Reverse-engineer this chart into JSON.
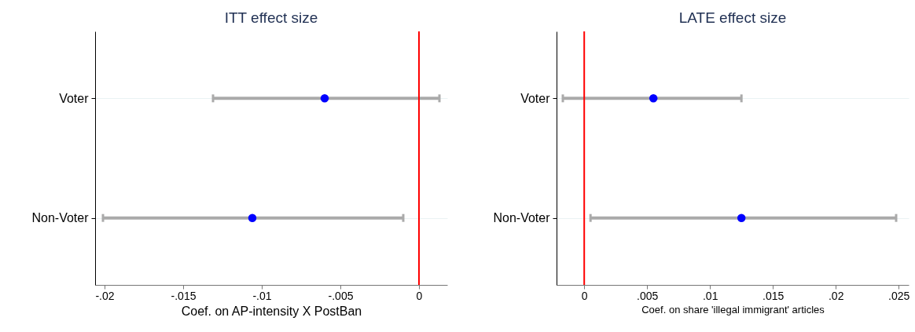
{
  "chart_data": [
    {
      "type": "scatter",
      "title": "ITT effect size",
      "xlabel": "Coef. on AP-intensity X PostBan",
      "orientation": "horizontal",
      "categories": [
        "Voter",
        "Non-Voter"
      ],
      "marker": "circle",
      "grid": "y",
      "series": [
        {
          "color": "#0000ff",
          "values": [
            -0.006,
            -0.0106
          ],
          "errors": [
            [
              -0.0131,
              0.0013
            ],
            [
              -0.0201,
              -0.001
            ]
          ]
        }
      ],
      "xlim": [
        -0.0206,
        0.0018
      ],
      "xticks": [
        {
          "value": -0.02,
          "label": "-.02"
        },
        {
          "value": -0.015,
          "label": "-.015"
        },
        {
          "value": -0.01,
          "label": "-.01"
        },
        {
          "value": -0.005,
          "label": "-.005"
        },
        0
      ],
      "ref_lines": [
        {
          "axis": "x",
          "value": 0,
          "color": "#ff0000"
        }
      ]
    },
    {
      "type": "scatter",
      "title": "LATE effect size",
      "xlabel": "Coef. on share 'illegal immigrant' articles",
      "orientation": "horizontal",
      "categories": [
        "Voter",
        "Non-Voter"
      ],
      "marker": "circle",
      "grid": "y",
      "series": [
        {
          "color": "#0000ff",
          "values": [
            0.0055,
            0.0125
          ],
          "errors": [
            [
              -0.0017,
              0.0125
            ],
            [
              0.0005,
              0.0248
            ]
          ]
        }
      ],
      "xlim": [
        -0.0022,
        0.0258
      ],
      "xticks": [
        0,
        {
          "value": 0.005,
          "label": ".005"
        },
        {
          "value": 0.01,
          "label": ".01"
        },
        {
          "value": 0.015,
          "label": ".015"
        },
        {
          "value": 0.02,
          "label": ".02"
        },
        {
          "value": 0.025,
          "label": ".025"
        }
      ],
      "ref_lines": [
        {
          "axis": "x",
          "value": 0,
          "color": "#ff0000"
        }
      ]
    }
  ]
}
